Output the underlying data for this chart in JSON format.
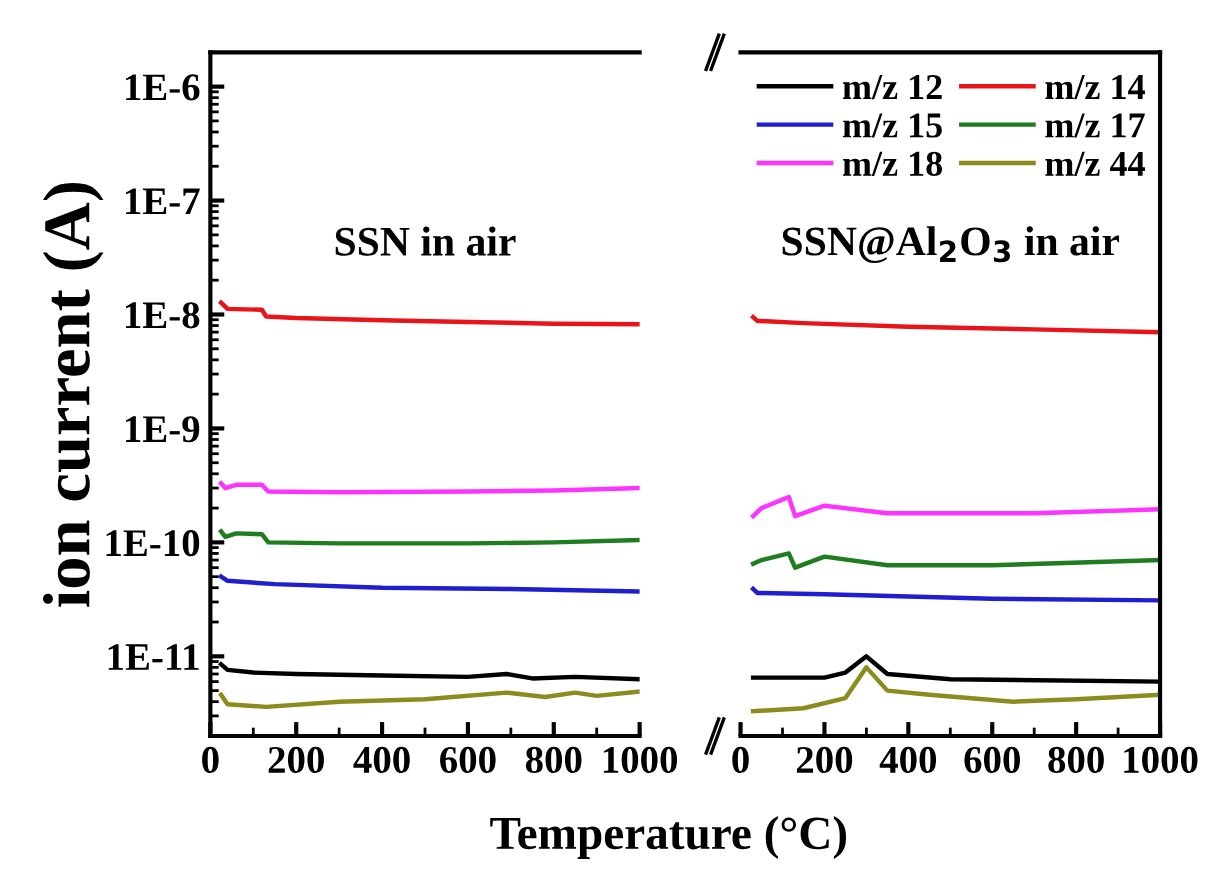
{
  "chart_data": [
    {
      "type": "line",
      "ylabel": "ion current (A)",
      "xlabel": "Temperature (°C)",
      "log": "y",
      "xlim": [
        0,
        1000
      ],
      "xticks": [
        0,
        200,
        400,
        600,
        800,
        1000
      ],
      "ylim": [
        2e-12,
        2e-06
      ],
      "yticks": [
        {
          "value": 1e-11,
          "label": "1E-11"
        },
        {
          "value": 1e-10,
          "label": "1E-10"
        },
        {
          "value": 1e-09,
          "label": "1E-9"
        },
        {
          "value": 1e-08,
          "label": "1E-8"
        },
        {
          "value": 1e-07,
          "label": "1E-7"
        },
        {
          "value": 1e-06,
          "label": "1E-6"
        }
      ],
      "grid": false,
      "annotations": [
        "SSN in air"
      ],
      "series": [
        {
          "color": "#000000",
          "x": [
            25,
            40,
            100,
            200,
            400,
            600,
            690,
            750,
            850,
            1000
          ],
          "values": [
            8.5e-12,
            7.6e-12,
            7.2e-12,
            7e-12,
            6.8e-12,
            6.6e-12,
            7e-12,
            6.4e-12,
            6.6e-12,
            6.3e-12
          ]
        },
        {
          "color": "#e8141a",
          "x": [
            25,
            40,
            120,
            130,
            200,
            400,
            600,
            800,
            1000
          ],
          "values": [
            1.27e-08,
            1.12e-08,
            1.1e-08,
            9.6e-09,
            9.3e-09,
            8.9e-09,
            8.6e-09,
            8.3e-09,
            8.2e-09
          ]
        },
        {
          "color": "#1f1fd0",
          "x": [
            25,
            40,
            150,
            400,
            700,
            1000
          ],
          "values": [
            5e-11,
            4.6e-11,
            4.3e-11,
            4e-11,
            3.9e-11,
            3.7e-11
          ]
        },
        {
          "color": "#1e7d1e",
          "x": [
            25,
            35,
            60,
            120,
            135,
            300,
            600,
            800,
            1000
          ],
          "values": [
            1.25e-10,
            1.12e-10,
            1.2e-10,
            1.18e-10,
            1e-10,
            9.8e-11,
            9.8e-11,
            1e-10,
            1.05e-10
          ]
        },
        {
          "color": "#ff33ff",
          "x": [
            25,
            35,
            60,
            120,
            135,
            300,
            600,
            800,
            1000
          ],
          "values": [
            3.3e-10,
            3e-10,
            3.2e-10,
            3.2e-10,
            2.8e-10,
            2.75e-10,
            2.8e-10,
            2.85e-10,
            3e-10
          ]
        },
        {
          "color": "#8b8b1e",
          "x": [
            25,
            40,
            130,
            300,
            500,
            690,
            780,
            850,
            900,
            1000
          ],
          "values": [
            4.6e-12,
            3.8e-12,
            3.6e-12,
            4e-12,
            4.2e-12,
            4.8e-12,
            4.4e-12,
            4.8e-12,
            4.5e-12,
            4.9e-12
          ]
        }
      ]
    },
    {
      "type": "line",
      "log": "y",
      "xlim": [
        0,
        1000
      ],
      "xticks": [
        0,
        200,
        400,
        600,
        800,
        1000
      ],
      "ylim": [
        2e-12,
        2e-06
      ],
      "tick_labels": "x",
      "grid": false,
      "legend": "top right",
      "annotations": [
        "SSN@Al$_{2}$O$_{3}$ in air"
      ],
      "series": [
        {
          "name": "m/z 12",
          "color": "#000000",
          "x": [
            30,
            200,
            250,
            300,
            350,
            500,
            1000
          ],
          "values": [
            6.5e-12,
            6.5e-12,
            7.2e-12,
            1e-11,
            7e-12,
            6.3e-12,
            6e-12
          ]
        },
        {
          "name": "m/z 14",
          "color": "#e8141a",
          "x": [
            30,
            40,
            150,
            400,
            700,
            1000
          ],
          "values": [
            9.5e-09,
            8.8e-09,
            8.4e-09,
            7.8e-09,
            7.4e-09,
            7e-09
          ]
        },
        {
          "name": "m/z 15",
          "color": "#1f1fd0",
          "x": [
            30,
            40,
            200,
            600,
            1000
          ],
          "values": [
            3.9e-11,
            3.6e-11,
            3.5e-11,
            3.2e-11,
            3.1e-11
          ]
        },
        {
          "name": "m/z 17",
          "color": "#1e7d1e",
          "x": [
            30,
            50,
            115,
            130,
            200,
            350,
            600,
            1000
          ],
          "values": [
            6.5e-11,
            7e-11,
            8e-11,
            6e-11,
            7.5e-11,
            6.3e-11,
            6.3e-11,
            7e-11
          ]
        },
        {
          "name": "m/z 18",
          "color": "#ff33ff",
          "x": [
            30,
            50,
            115,
            130,
            200,
            350,
            700,
            1000
          ],
          "values": [
            1.7e-10,
            2e-10,
            2.5e-10,
            1.7e-10,
            2.1e-10,
            1.8e-10,
            1.8e-10,
            1.95e-10
          ]
        },
        {
          "name": "m/z 44",
          "color": "#8b8b1e",
          "x": [
            30,
            150,
            250,
            300,
            350,
            450,
            650,
            800,
            1000
          ],
          "values": [
            3.3e-12,
            3.5e-12,
            4.3e-12,
            8e-12,
            5e-12,
            4.6e-12,
            4e-12,
            4.2e-12,
            4.6e-12
          ]
        }
      ]
    }
  ]
}
